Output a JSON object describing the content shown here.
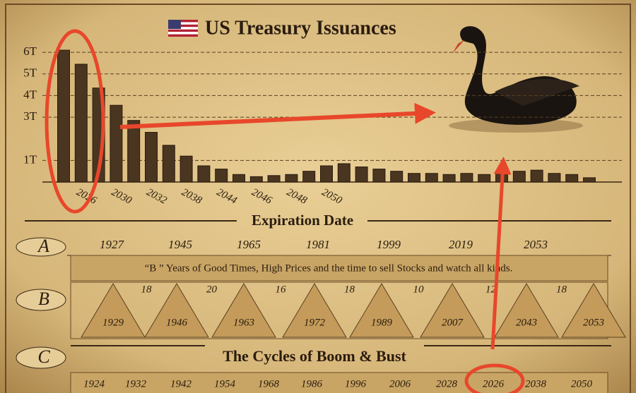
{
  "chart_data": {
    "type": "bar",
    "title": "US Treasury Issuances",
    "x_label": "Expiration Date",
    "categories": [
      null,
      "2026",
      null,
      "2030",
      null,
      "2032",
      null,
      "2038",
      null,
      "2044",
      null,
      "2046",
      null,
      "2048",
      null,
      "2050",
      null,
      null,
      null,
      null,
      null,
      null,
      null,
      null,
      null,
      null,
      null,
      null,
      null,
      null,
      null
    ],
    "values": [
      6.1,
      5.45,
      4.35,
      3.55,
      2.85,
      2.3,
      1.7,
      1.2,
      0.75,
      0.6,
      0.35,
      0.25,
      0.3,
      0.35,
      0.5,
      0.75,
      0.85,
      0.7,
      0.6,
      0.5,
      0.4,
      0.4,
      0.35,
      0.4,
      0.35,
      0.45,
      0.5,
      0.55,
      0.4,
      0.35,
      0.2
    ],
    "color": "#4a3520",
    "ylim": [
      0,
      6.2
    ],
    "yticks": [
      {
        "value": 1,
        "label": "1T"
      },
      {
        "value": 3,
        "label": "3T"
      },
      {
        "value": 4,
        "label": "4T"
      },
      {
        "value": 5,
        "label": "5T"
      },
      {
        "value": 6,
        "label": "6T"
      }
    ],
    "grid": true
  },
  "cycles": {
    "title": "The Cycles of Boom & Bust",
    "row_a": {
      "label": "A",
      "years": [
        "1927",
        "1945",
        "1965",
        "1981",
        "1999",
        "2019",
        "2053"
      ]
    },
    "row_b": {
      "label": "B",
      "banner": "“B ” Years of Good Times, High Prices and the time to sell Stocks and watch all kinds.",
      "gaps": [
        "18",
        "20",
        "16",
        "18",
        "10",
        "12",
        "18"
      ],
      "years": [
        "1929",
        "1946",
        "1963",
        "1972",
        "1989",
        "2007",
        "2043",
        "2053"
      ]
    },
    "row_c": {
      "label": "C",
      "years": [
        "1924",
        "1932",
        "1942",
        "1954",
        "1968",
        "1986",
        "1996",
        "2006",
        "2028",
        "2026",
        "2038",
        "2050"
      ]
    }
  }
}
